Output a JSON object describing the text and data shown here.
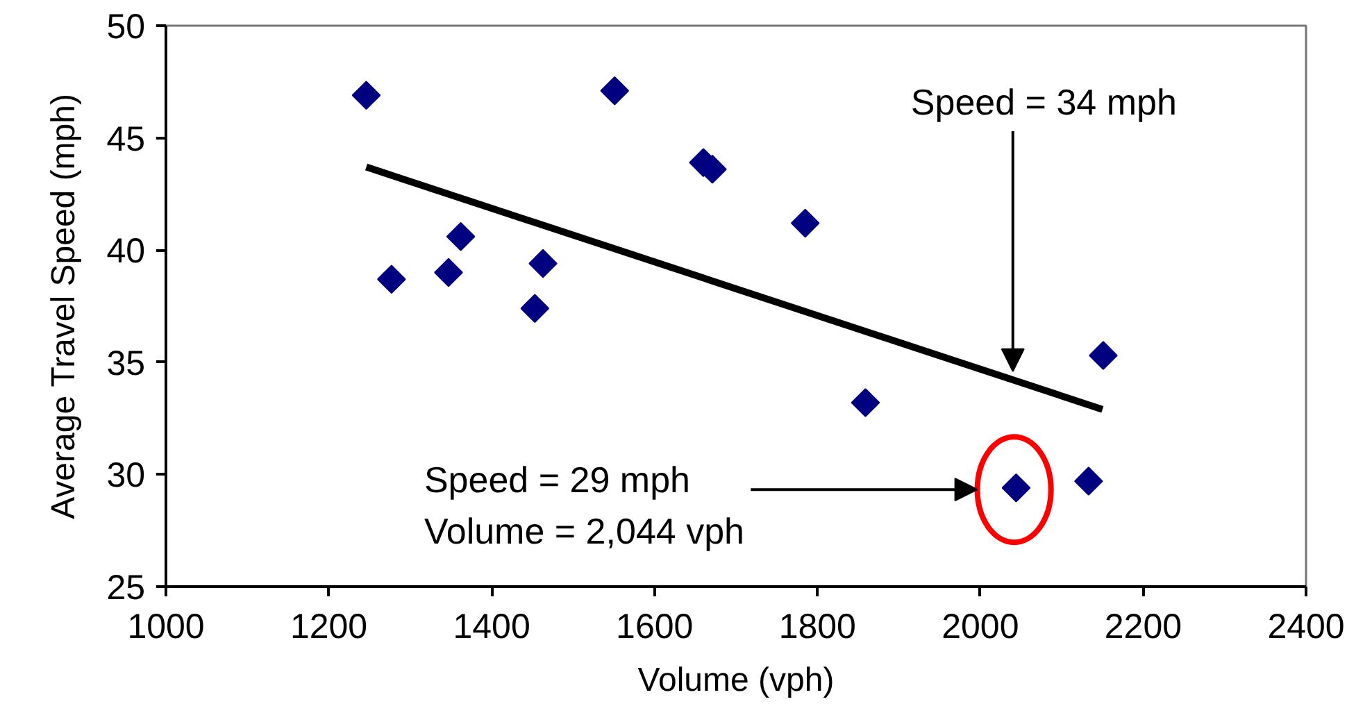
{
  "chart_data": {
    "type": "scatter",
    "xlabel": "Volume (vph)",
    "ylabel": "Average Travel Speed (mph)",
    "xlim": [
      1000,
      2400
    ],
    "xticks": [
      1000,
      1200,
      1400,
      1600,
      1800,
      2000,
      2200,
      2400
    ],
    "ylim": [
      25,
      50
    ],
    "yticks": [
      25,
      30,
      35,
      40,
      45,
      50
    ],
    "grid": false,
    "marker": "diamond",
    "series": [
      {
        "color": "#000080",
        "x": [
          1246,
          1277,
          1347,
          1362,
          1463,
          1453,
          1551,
          1660,
          1671,
          1785,
          1859,
          2044,
          2133,
          2151
        ],
        "values": [
          46.9,
          38.7,
          39.0,
          40.6,
          39.4,
          37.4,
          47.1,
          43.9,
          43.6,
          41.2,
          33.2,
          29.4,
          29.7,
          35.3
        ]
      },
      {
        "type": "line",
        "color": "#000000",
        "marker": "none",
        "line_style": "solid",
        "x": [
          1246,
          2150
        ],
        "values": [
          43.7,
          32.9
        ]
      }
    ],
    "annotations": [
      {
        "text": "Speed = 34 mph",
        "x": 2040,
        "y": 34.6
      },
      "Speed = 29 mph\nVolume = 2,044 vph"
    ]
  }
}
